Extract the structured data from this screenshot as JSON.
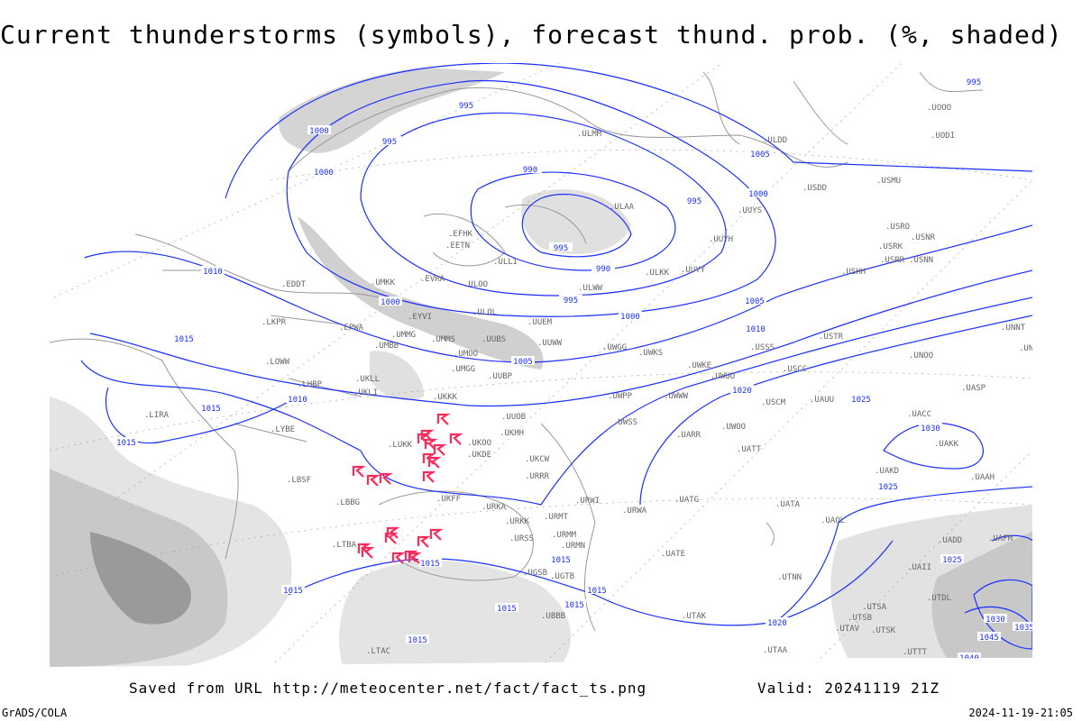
{
  "title": "Current thunderstorms (symbols), forecast thund. prob. (%, shaded)",
  "footer": {
    "saved": "Saved from URL http://meteocenter.net/fact/fact_ts.png",
    "valid": "Valid: 20241119 21Z",
    "software": "GrADS/COLA",
    "timestamp": "2024-11-19-21:05"
  },
  "colors": {
    "isobar": "#1a2fff",
    "thunderstorm_symbol": "#ff2a5a",
    "coast": "#999999",
    "shade_light": "#e4e4e4",
    "shade_mid": "#c8c8c8",
    "shade_dark": "#9a9a9a"
  },
  "isobar_labels": [
    "995",
    "1000",
    "1000",
    "995",
    "990",
    "995",
    "995",
    "990",
    "995",
    "1000",
    "1005",
    "1000",
    "1010",
    "1015",
    "1010",
    "1005",
    "1000",
    "1005",
    "1010",
    "1015",
    "1020",
    "1025",
    "1030",
    "1025",
    "1015",
    "1015",
    "1015",
    "1015",
    "1015",
    "1015",
    "1015",
    "1020",
    "1025",
    "1030",
    "1035",
    "1045",
    "1040",
    "995",
    "1015"
  ],
  "stations": [
    "ULMM",
    "ULDD",
    "USMU",
    "USDD",
    "UUYS",
    "ULAA",
    "UUYH",
    "UUYY",
    "ULKK",
    "ULWW",
    "EFHK",
    "EETN",
    "ULLI",
    "ULOO",
    "EVRA",
    "UMKK",
    "EDDT",
    "ULOL",
    "EYVI",
    "UUEM",
    "UMMG",
    "UMMS",
    "UMOO",
    "UUBS",
    "UUWW",
    "UMBB",
    "EPWA",
    "LKPR",
    "LOWW",
    "LHBP",
    "UKLL",
    "UKLI",
    "UKKK",
    "UMGG",
    "UUBP",
    "UUOB",
    "UKHH",
    "UKOO",
    "UKDE",
    "LUKK",
    "UKFF",
    "URKA",
    "URKK",
    "URSS",
    "UGSB",
    "LYBE",
    "LIRA",
    "LBSF",
    "LBBG",
    "LTBA",
    "URRR",
    "UKCW",
    "URWI",
    "URMT",
    "URMM",
    "URMN",
    "UGTB",
    "UBBB",
    "URWA",
    "UWGG",
    "UWKS",
    "UWKE",
    "UWWW",
    "UWPP",
    "UWSS",
    "UWUU",
    "UWOO",
    "UARR",
    "UATT",
    "UATG",
    "UATA",
    "UAOL",
    "UACC",
    "UAKK",
    "UAKD",
    "UAAH",
    "UASP",
    "UNOO",
    "UNNT",
    "UNBB",
    "USSS",
    "USCC",
    "USCM",
    "UAUU",
    "USTR",
    "USRR",
    "USNN",
    "USNR",
    "USRO",
    "USRK",
    "USHH",
    "UODI",
    "UOOO",
    "UATE",
    "UTAK",
    "UTNN",
    "UTAA",
    "UTSA",
    "UTSB",
    "UTSK",
    "UTAV",
    "UTDL",
    "UAFM",
    "UADD",
    "UAII",
    "UTTT",
    "LTAC"
  ]
}
